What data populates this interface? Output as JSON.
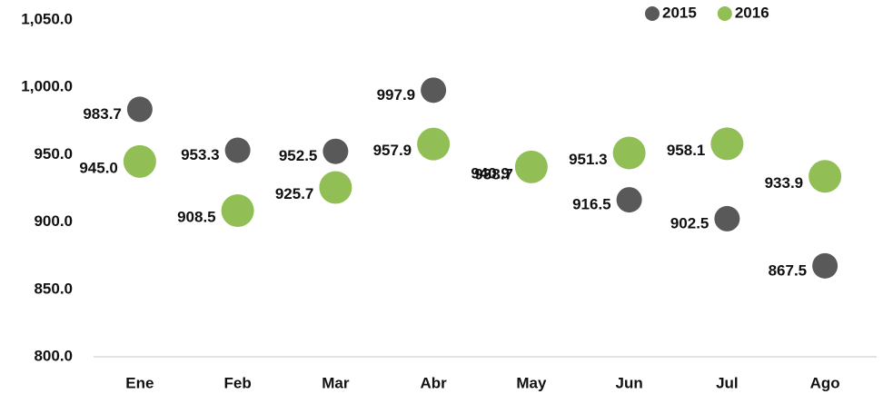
{
  "chart_data": {
    "type": "scatter",
    "categories": [
      "Ene",
      "Feb",
      "Mar",
      "Abr",
      "May",
      "Jun",
      "Jul",
      "Ago"
    ],
    "series": [
      {
        "name": "2015",
        "color": "#595959",
        "values": [
          983.7,
          953.3,
          952.5,
          997.9,
          938.7,
          916.5,
          902.5,
          867.5
        ],
        "value_labels": [
          "983.7",
          "953.3",
          "952.5",
          "997.9",
          "938.7",
          "916.5",
          "902.5",
          "867.5"
        ]
      },
      {
        "name": "2016",
        "color": "#92bf55",
        "values": [
          945.0,
          908.5,
          925.7,
          957.9,
          940.9,
          951.3,
          958.1,
          933.9
        ],
        "value_labels": [
          "945.0",
          "908.5",
          "925.7",
          "957.9",
          "940.9",
          "951.3",
          "958.1",
          "933.9"
        ]
      }
    ],
    "ylim": [
      800,
      1050
    ],
    "yticks": [
      {
        "value": 800,
        "label": "800.0"
      },
      {
        "value": 850,
        "label": "850.0"
      },
      {
        "value": 900,
        "label": "900.0"
      },
      {
        "value": 950,
        "label": "950.0"
      },
      {
        "value": 1000,
        "label": "1,000.0"
      },
      {
        "value": 1050,
        "label": "1,050.0"
      }
    ],
    "grid": false,
    "legend": "top-right"
  }
}
